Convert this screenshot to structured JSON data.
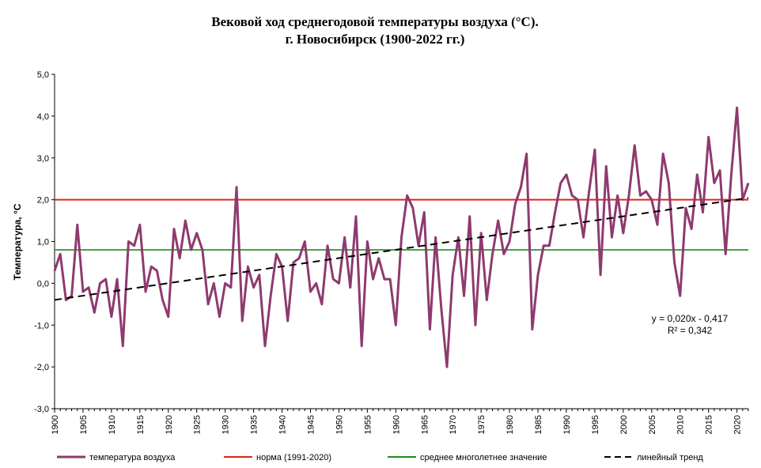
{
  "chart_data": {
    "type": "line",
    "title_line1": "Вековой ход среднегодовой температуры воздуха (°С).",
    "title_line2": "г. Новосибирск (1900-2022 гг.)",
    "ylabel": "Температура, °С",
    "xlabel": "",
    "ylim": [
      -3.0,
      5.0
    ],
    "y_ticks": [
      "5,0",
      "4,0",
      "3,0",
      "2,0",
      "1,0",
      "0,0",
      "-1,0",
      "-2,0",
      "-3,0"
    ],
    "x_tick_labels": [
      "1900",
      "1905",
      "1910",
      "1915",
      "1920",
      "1925",
      "1930",
      "1935",
      "1940",
      "1945",
      "1950",
      "1955",
      "1960",
      "1965",
      "1970",
      "1975",
      "1980",
      "1985",
      "1990",
      "1995",
      "2000",
      "2005",
      "2010",
      "2015",
      "2020"
    ],
    "x_start": 1900,
    "x_end": 2022,
    "series": [
      {
        "name": "температура воздуха",
        "color": "#8e3a6e",
        "values": [
          0.3,
          0.7,
          -0.4,
          -0.3,
          1.4,
          -0.2,
          -0.1,
          -0.7,
          0.0,
          0.1,
          -0.8,
          0.1,
          -1.5,
          1.0,
          0.9,
          1.4,
          -0.2,
          0.4,
          0.3,
          -0.4,
          -0.8,
          1.3,
          0.6,
          1.5,
          0.8,
          1.2,
          0.8,
          -0.5,
          0.0,
          -0.8,
          0.0,
          -0.1,
          2.3,
          -0.9,
          0.4,
          -0.1,
          0.2,
          -1.5,
          -0.3,
          0.7,
          0.4,
          -0.9,
          0.5,
          0.6,
          1.0,
          -0.2,
          0.0,
          -0.5,
          0.9,
          0.1,
          0.0,
          1.1,
          -0.1,
          1.6,
          -1.5,
          1.0,
          0.1,
          0.6,
          0.1,
          0.1,
          -1.0,
          1.1,
          2.1,
          1.8,
          0.9,
          1.7,
          -1.1,
          1.1,
          -0.6,
          -2.0,
          0.2,
          1.1,
          -0.3,
          1.6,
          -1.0,
          1.2,
          -0.4,
          0.7,
          1.5,
          0.7,
          1.0,
          1.9,
          2.3,
          3.1,
          -1.1,
          0.2,
          0.9,
          0.9,
          1.7,
          2.4,
          2.6,
          2.1,
          2.0,
          1.1,
          2.2,
          3.2,
          0.2,
          2.8,
          1.1,
          2.1,
          1.2,
          2.1,
          3.3,
          2.1,
          2.2,
          2.0,
          1.4,
          3.1,
          2.4,
          0.5,
          -0.3,
          1.8,
          1.3,
          2.6,
          1.7,
          3.5,
          2.4,
          2.7,
          0.7,
          2.6,
          4.2,
          2.0,
          2.4
        ]
      },
      {
        "name": "норма (1991-2020)",
        "color": "#e2231a",
        "value": 2.0
      },
      {
        "name": "среднее многолетнее значение",
        "color": "#1f8a1f",
        "value": 0.8
      },
      {
        "name": "линейный тренд",
        "color": "#000000",
        "slope": 0.02,
        "intercept": -0.417
      }
    ],
    "trend_equation": "y = 0,020x  - 0,417",
    "r_squared": "R² = 0,342",
    "legend_position": "bottom",
    "grid": false
  }
}
